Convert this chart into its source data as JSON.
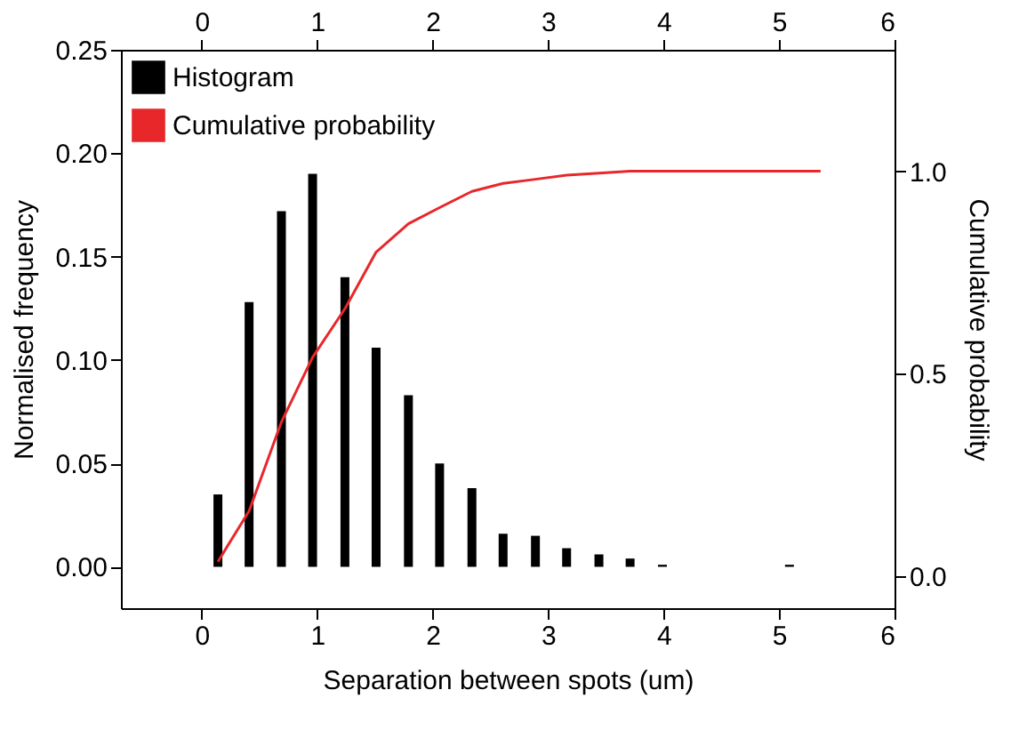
{
  "chart_data": {
    "type": "bar",
    "xlabel": "Separation between spots (um)",
    "ylabel": "Normalised frequency",
    "y2label": "Cumulative probability",
    "x": [
      0.14,
      0.41,
      0.69,
      0.96,
      1.24,
      1.51,
      1.79,
      2.06,
      2.34,
      2.61,
      2.89,
      3.16,
      3.44,
      3.71,
      3.99,
      4.26,
      4.54,
      4.81,
      5.09,
      5.36
    ],
    "series": [
      {
        "name": "Histogram",
        "color": "#000000",
        "values": [
          0.035,
          0.128,
          0.172,
          0.19,
          0.14,
          0.106,
          0.083,
          0.05,
          0.038,
          0.016,
          0.015,
          0.009,
          0.006,
          0.004,
          0.001,
          0,
          0,
          0,
          0.001,
          0
        ]
      },
      {
        "name": "Cumulative probability",
        "type": "line",
        "axis": "y2",
        "color": "#e8272b",
        "values": [
          0.035,
          0.16,
          0.38,
          0.54,
          0.66,
          0.8,
          0.87,
          0.91,
          0.95,
          0.97,
          0.98,
          0.99,
          0.995,
          1.0,
          1.0,
          1.0,
          1.0,
          1.0,
          1.0,
          1.0
        ]
      }
    ],
    "xlim": [
      -0.7,
      6
    ],
    "xticks": [
      0,
      1,
      2,
      3,
      4,
      5,
      6
    ],
    "x2lim": [
      -0.7,
      6
    ],
    "x2ticks": [
      0,
      1,
      2,
      3,
      4,
      5,
      6
    ],
    "ylim": [
      -0.02,
      0.25
    ],
    "yticks": [
      {
        "value": 0,
        "label": "0.00"
      },
      {
        "value": 0.05,
        "label": "0.05"
      },
      {
        "value": 0.1,
        "label": "0.10"
      },
      {
        "value": 0.15,
        "label": "0.15"
      },
      {
        "value": 0.2,
        "label": "0.20"
      },
      {
        "value": 0.25,
        "label": "0.25"
      }
    ],
    "y2lim": [
      -0.08,
      1.3
    ],
    "y2ticks": [
      {
        "value": 0,
        "label": "0.0"
      },
      0.5,
      {
        "value": 1,
        "label": "1.0"
      }
    ],
    "legend": "top left",
    "grid": false
  }
}
